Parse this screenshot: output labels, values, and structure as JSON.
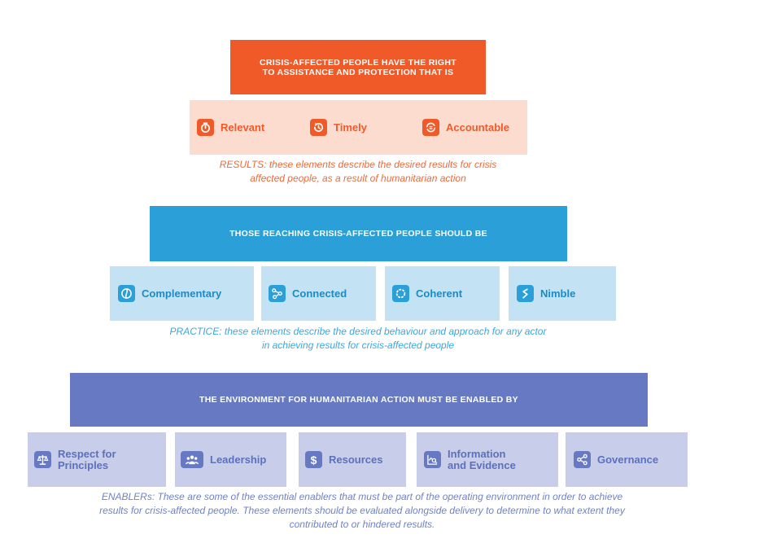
{
  "tier1": {
    "banner": "CRISIS-AFFECTED PEOPLE HAVE THE RIGHT\nTO ASSISTANCE AND PROTECTION THAT IS",
    "cards": [
      {
        "label": "Relevant",
        "icon": "stopwatch-icon"
      },
      {
        "label": "Timely",
        "icon": "clock-refresh-icon"
      },
      {
        "label": "Accountable",
        "icon": "cycle-arrows-icon"
      }
    ],
    "caption": "RESULTS: these elements describe the desired results for crisis\naffected people, as a result of humanitarian action",
    "colors": {
      "banner": "#f05a28",
      "card": "#fcdccf",
      "text": "#f05a28"
    }
  },
  "tier2": {
    "banner": "THOSE REACHING CRISIS-AFFECTED PEOPLE SHOULD BE",
    "cards": [
      {
        "label": "Complementary",
        "icon": "interlock-circle-icon"
      },
      {
        "label": "Connected",
        "icon": "network-nodes-icon"
      },
      {
        "label": "Coherent",
        "icon": "ring-icon"
      },
      {
        "label": "Nimble",
        "icon": "zigzag-icon"
      }
    ],
    "caption": "PRACTICE: these elements describe the desired behaviour and approach for any actor\nin achieving results for crisis-affected people",
    "colors": {
      "banner": "#2ba0d8",
      "card": "#c3e2f3",
      "text": "#1d8ac6"
    }
  },
  "tier3": {
    "banner": "THE ENVIRONMENT FOR HUMANITARIAN ACTION MUST BE ENABLED BY",
    "cards": [
      {
        "label": "Respect for\nPrinciples",
        "icon": "scales-icon"
      },
      {
        "label": "Leadership",
        "icon": "group-icon"
      },
      {
        "label": "Resources",
        "icon": "dollar-icon"
      },
      {
        "label": "Information\nand Evidence",
        "icon": "chart-magnifier-icon"
      },
      {
        "label": "Governance",
        "icon": "share-nodes-icon"
      }
    ],
    "caption": "ENABLERs: These are some of the essential enablers that must be part of the operating environment in order to achieve\nresults for crisis-affected people. These elements should be evaluated alongside delivery to determine to what extent they\ncontributed to or hindered results.",
    "colors": {
      "banner": "#6779c2",
      "card": "#c8cde9",
      "text": "#5c70be"
    }
  }
}
